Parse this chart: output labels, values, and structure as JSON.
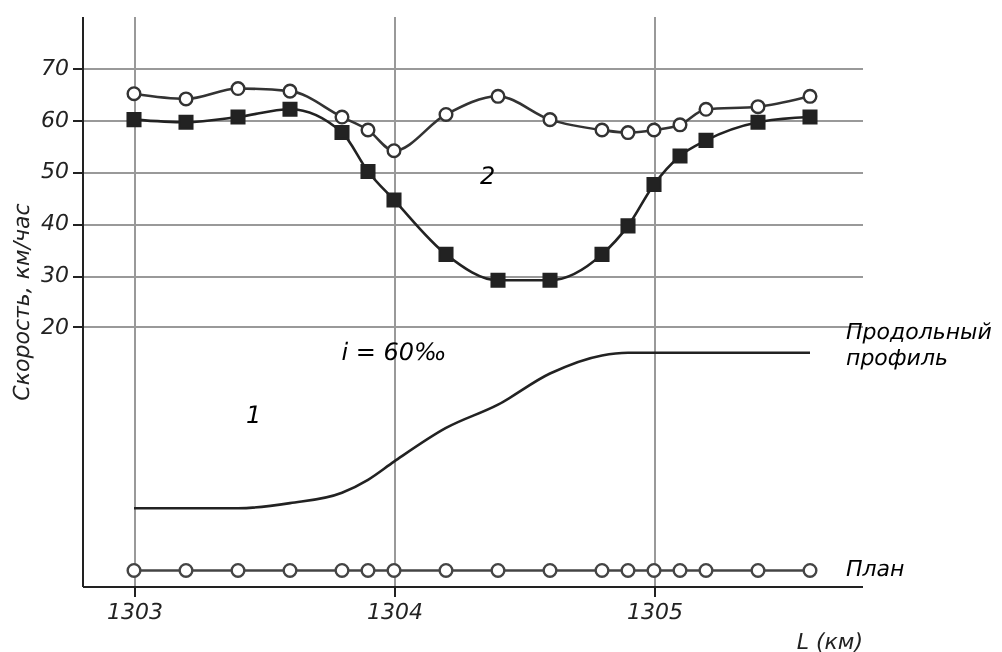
{
  "chart_data": {
    "type": "line",
    "xlabel": "L (км)",
    "ylabel": "Скорость, км/час",
    "x": [
      1303.0,
      1303.2,
      1303.4,
      1303.6,
      1303.8,
      1303.9,
      1304.0,
      1304.2,
      1304.4,
      1304.6,
      1304.8,
      1304.9,
      1305.0,
      1305.1,
      1305.2,
      1305.4,
      1305.6
    ],
    "series": [
      {
        "color": "#333333",
        "marker": "circle",
        "values": [
          65,
          64,
          66,
          65.5,
          60.5,
          58,
          54,
          61,
          64.5,
          60,
          58,
          57.5,
          58,
          59,
          62,
          62.5,
          64.5
        ]
      },
      {
        "color": "#222222",
        "marker": "square",
        "values": [
          60,
          59.5,
          60.5,
          62,
          57.5,
          50,
          44.5,
          34,
          29,
          29,
          34,
          39.5,
          47.5,
          53,
          56,
          59.5,
          60.5
        ]
      },
      {
        "name": "Продольный профиль",
        "color": "#222222",
        "marker": "none",
        "values": [
          -15,
          -15,
          -15,
          -14,
          -12,
          -9.5,
          -6,
          0.5,
          5,
          11,
          14.5,
          15,
          15,
          15,
          15,
          15,
          15
        ]
      },
      {
        "name": "План",
        "color": "#444444",
        "marker": "circle",
        "values": [
          -27,
          -27,
          -27,
          -27,
          -27,
          -27,
          -27,
          -27,
          -27,
          -27,
          -27,
          -27,
          -27,
          -27,
          -27,
          -27,
          -27
        ]
      }
    ],
    "xlim": [
      1302.8,
      1305.8
    ],
    "xticks": [
      1303,
      1304,
      1305
    ],
    "ylim": [
      -30,
      80
    ],
    "yticks": [
      20,
      30,
      40,
      50,
      60,
      70
    ],
    "grid": true,
    "line_style": "solid",
    "annotations": [
      "2",
      "1",
      "i = 60‰"
    ]
  }
}
